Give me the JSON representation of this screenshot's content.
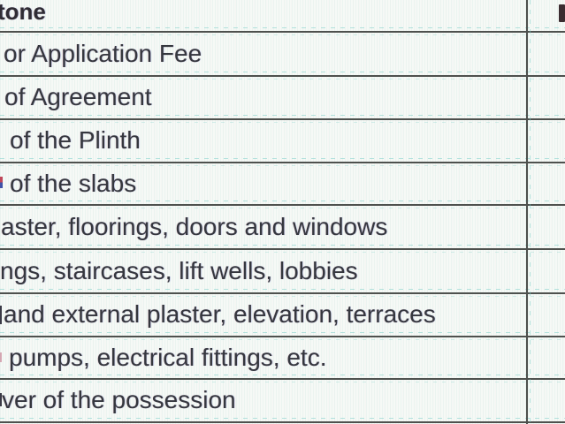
{
  "colors": {
    "text": "#35373e",
    "header_text": "#2f2c34",
    "grid_dark": "#4e514e",
    "dash_teal": "#7ccfc9",
    "bg": "#f6f9f6",
    "frag_red": "#c0475a",
    "frag_blue": "#4052a8",
    "frag_dark": "#3a3a46",
    "header_frag": "#3b2d31"
  },
  "table": {
    "header": {
      "milestone_label": "tone"
    },
    "rows": [
      {
        "label": "or Application Fee"
      },
      {
        "label": "of Agreement"
      },
      {
        "label": "of the Plinth"
      },
      {
        "label": "of the slabs"
      },
      {
        "label": "aster, floorings, doors and windows"
      },
      {
        "label": "ngs, staircases, lift wells, lobbies"
      },
      {
        "label": "and external plaster, elevation, terraces"
      },
      {
        "label": "pumps, electrical fittings, etc."
      },
      {
        "label": "ver of the possession"
      }
    ]
  }
}
